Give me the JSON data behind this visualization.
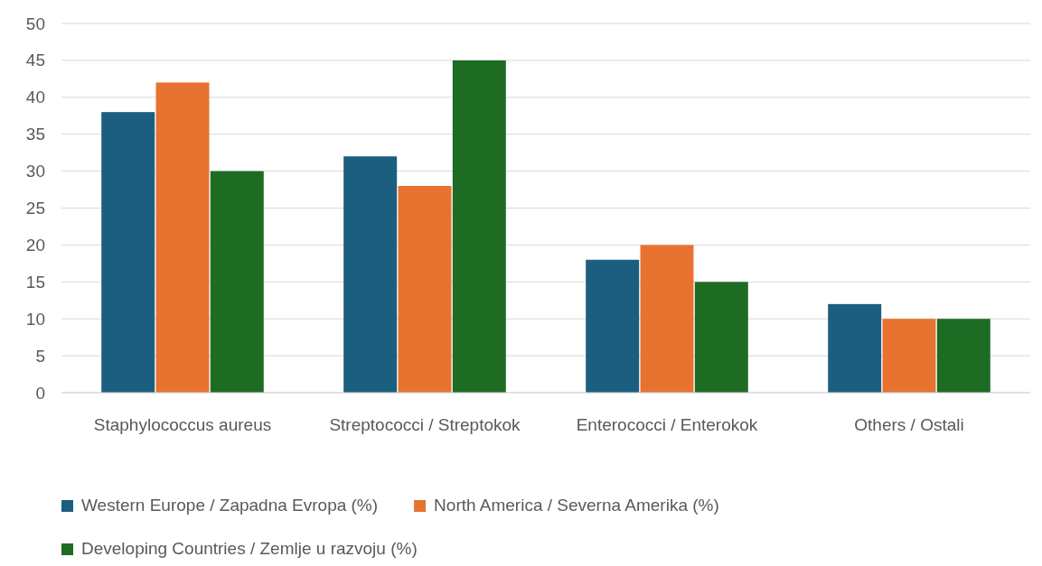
{
  "chart_data": {
    "type": "bar",
    "categories": [
      "Staphylococcus aureus",
      "Streptococci / Streptokok",
      "Enterococci / Enterokok",
      "Others / Ostali"
    ],
    "series": [
      {
        "name": "Western Europe / Zapadna Evropa (%)",
        "color": "#1b5e80",
        "values": [
          38,
          32,
          18,
          12
        ]
      },
      {
        "name": "North America / Severna Amerika (%)",
        "color": "#e87230",
        "values": [
          42,
          28,
          20,
          10
        ]
      },
      {
        "name": "Developing Countries / Zemlje u razvoju (%)",
        "color": "#1e6b24",
        "values": [
          30,
          45,
          15,
          10
        ]
      }
    ],
    "ylim": [
      0,
      50
    ],
    "yticks": [
      0,
      5,
      10,
      15,
      20,
      25,
      30,
      35,
      40,
      45,
      50
    ],
    "grid": "y",
    "legend": "bottom"
  }
}
